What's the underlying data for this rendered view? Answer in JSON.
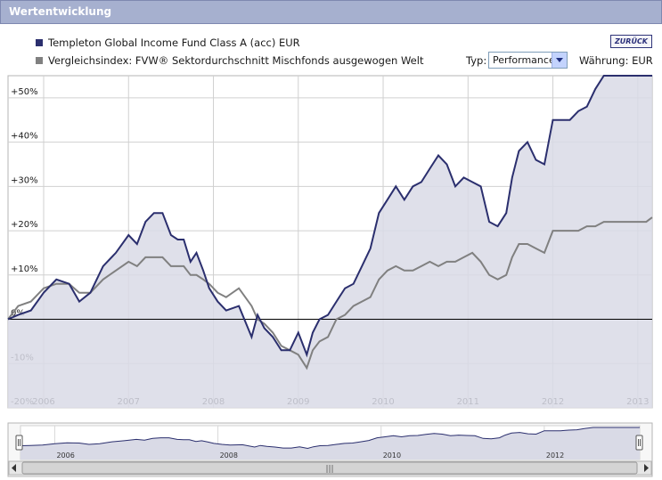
{
  "header": {
    "title": "Wertentwicklung"
  },
  "legend": {
    "fund_label": "Templeton Global Income Fund Class A (acc) EUR",
    "index_label": "Vergleichsindex: FVW® Sektordurchschnitt Mischfonds ausgewogen Welt"
  },
  "controls": {
    "back_label": "ZURÜCK",
    "typ_label": "Typ:",
    "typ_value": "Performance",
    "currency_label": "Währung: EUR"
  },
  "colors": {
    "fund": "#2b2f6e",
    "index": "#808080",
    "fill": "#d9dae6",
    "grid": "#c8c8c8",
    "header": "#a6b0cf"
  },
  "chart_data": {
    "type": "line",
    "ylim": [
      -20,
      55
    ],
    "yticks": [
      -20,
      -10,
      0,
      10,
      20,
      30,
      40,
      50
    ],
    "ytick_labels": [
      "-20%",
      "-10%",
      "0%",
      "+10%",
      "+20%",
      "+30%",
      "+40%",
      "+50%"
    ],
    "xlim": [
      2005.58,
      2013.17
    ],
    "xticks": [
      2006,
      2007,
      2008,
      2009,
      2010,
      2011,
      2012,
      2013
    ],
    "xtick_labels": [
      "2006",
      "2007",
      "2008",
      "2009",
      "2010",
      "2011",
      "2012",
      "2013"
    ],
    "grid": true,
    "series": [
      {
        "name": "Templeton Global Income Fund Class A (acc) EUR",
        "x": [
          2005.58,
          2005.7,
          2005.85,
          2006.0,
          2006.15,
          2006.3,
          2006.42,
          2006.55,
          2006.7,
          2006.85,
          2007.0,
          2007.1,
          2007.2,
          2007.3,
          2007.4,
          2007.5,
          2007.58,
          2007.65,
          2007.73,
          2007.8,
          2007.88,
          2007.95,
          2008.05,
          2008.15,
          2008.3,
          2008.45,
          2008.52,
          2008.6,
          2008.7,
          2008.8,
          2008.9,
          2009.0,
          2009.1,
          2009.17,
          2009.25,
          2009.35,
          2009.45,
          2009.55,
          2009.65,
          2009.75,
          2009.85,
          2009.95,
          2010.05,
          2010.15,
          2010.25,
          2010.35,
          2010.45,
          2010.55,
          2010.65,
          2010.75,
          2010.85,
          2010.95,
          2011.05,
          2011.15,
          2011.25,
          2011.35,
          2011.45,
          2011.52,
          2011.6,
          2011.7,
          2011.8,
          2011.9,
          2012.0,
          2012.1,
          2012.2,
          2012.3,
          2012.4,
          2012.5,
          2012.6,
          2012.7,
          2012.8,
          2012.9,
          2013.0,
          2013.1,
          2013.17
        ],
        "values": [
          0,
          1,
          2,
          6,
          9,
          8,
          4,
          6,
          12,
          15,
          19,
          17,
          22,
          24,
          24,
          19,
          18,
          18,
          13,
          15,
          11,
          7,
          4,
          2,
          3,
          -4,
          1,
          -2,
          -4,
          -7,
          -7,
          -3,
          -8,
          -3,
          0,
          1,
          4,
          7,
          8,
          12,
          16,
          24,
          27,
          30,
          27,
          30,
          31,
          34,
          37,
          35,
          30,
          32,
          31,
          30,
          22,
          21,
          24,
          32,
          38,
          40,
          36,
          35,
          45,
          45,
          45,
          47,
          48,
          52,
          55,
          55,
          55,
          55,
          55,
          55,
          55
        ]
      },
      {
        "name": "Vergleichsindex: FVW® Sektordurchschnitt Mischfonds ausgewogen Welt",
        "x": [
          2005.58,
          2005.7,
          2005.85,
          2006.0,
          2006.15,
          2006.3,
          2006.42,
          2006.55,
          2006.7,
          2006.85,
          2007.0,
          2007.1,
          2007.2,
          2007.3,
          2007.4,
          2007.5,
          2007.58,
          2007.65,
          2007.73,
          2007.8,
          2007.88,
          2007.95,
          2008.05,
          2008.15,
          2008.3,
          2008.45,
          2008.52,
          2008.6,
          2008.7,
          2008.8,
          2008.9,
          2009.0,
          2009.1,
          2009.17,
          2009.25,
          2009.35,
          2009.45,
          2009.55,
          2009.65,
          2009.75,
          2009.85,
          2009.95,
          2010.05,
          2010.15,
          2010.25,
          2010.35,
          2010.45,
          2010.55,
          2010.65,
          2010.75,
          2010.85,
          2010.95,
          2011.05,
          2011.15,
          2011.25,
          2011.35,
          2011.45,
          2011.52,
          2011.6,
          2011.7,
          2011.8,
          2011.9,
          2012.0,
          2012.1,
          2012.2,
          2012.3,
          2012.4,
          2012.5,
          2012.6,
          2012.7,
          2012.8,
          2012.9,
          2013.0,
          2013.1,
          2013.17
        ],
        "values": [
          0,
          3,
          4,
          7,
          8,
          8,
          6,
          6,
          9,
          11,
          13,
          12,
          14,
          14,
          14,
          12,
          12,
          12,
          10,
          10,
          9,
          8,
          6,
          5,
          7,
          3,
          0,
          -1,
          -3,
          -6,
          -7,
          -8,
          -11,
          -7,
          -5,
          -4,
          0,
          1,
          3,
          4,
          5,
          9,
          11,
          12,
          11,
          11,
          12,
          13,
          12,
          13,
          13,
          14,
          15,
          13,
          10,
          9,
          10,
          14,
          17,
          17,
          16,
          15,
          20,
          20,
          20,
          20,
          21,
          21,
          22,
          22,
          22,
          22,
          22,
          22,
          23
        ]
      }
    ]
  },
  "navigator": {
    "xtick_labels": [
      "2006",
      "2008",
      "2010",
      "2012"
    ],
    "scrollbar_grip": "|||"
  }
}
